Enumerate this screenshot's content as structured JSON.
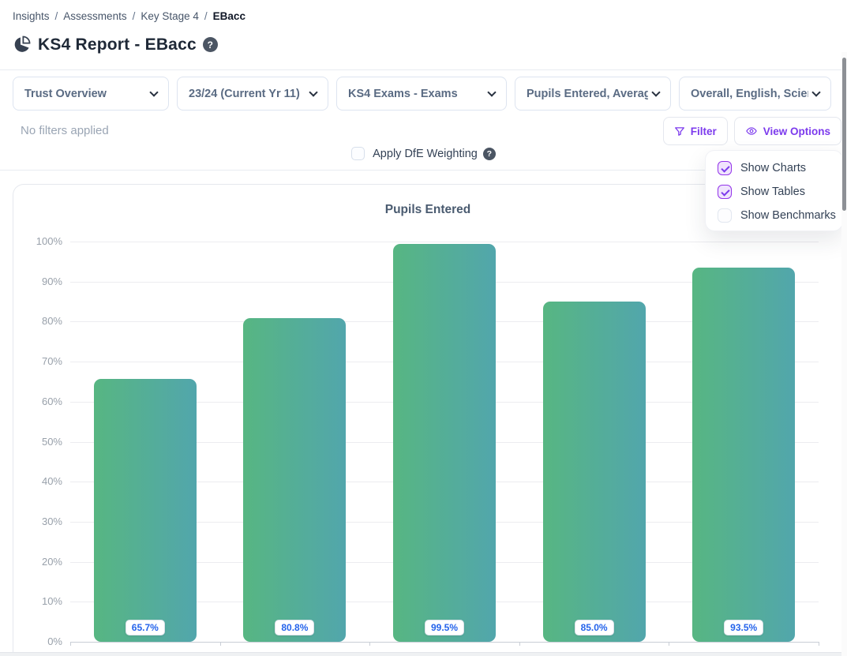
{
  "breadcrumb": {
    "separator": "/",
    "items": [
      "Insights",
      "Assessments",
      "Key Stage 4",
      "EBacc"
    ]
  },
  "help_glyph": "?",
  "header": {
    "title": "KS4 Report - EBacc"
  },
  "toolbar": {
    "dropdowns": [
      {
        "label": "Trust Overview"
      },
      {
        "label": "23/24 (Current Yr 11)"
      },
      {
        "label": "KS4 Exams - Exams"
      },
      {
        "label": "Pupils Entered, Average"
      },
      {
        "label": "Overall, English, Science"
      }
    ]
  },
  "filters_bar": {
    "no_filters_text": "No filters applied",
    "filter_button": "Filter",
    "view_options_button": "View Options"
  },
  "view_options_menu": {
    "items": [
      {
        "label": "Show Charts",
        "checked": true
      },
      {
        "label": "Show Tables",
        "checked": true
      },
      {
        "label": "Show Benchmarks",
        "checked": false
      }
    ]
  },
  "weighting": {
    "label": "Apply DfE Weighting",
    "checked": false
  },
  "chart_data": {
    "type": "bar",
    "title": "Pupils Entered",
    "values": [
      65.7,
      80.8,
      99.5,
      85.0,
      93.5
    ],
    "value_labels": [
      "65.7%",
      "80.8%",
      "99.5%",
      "85.0%",
      "93.5%"
    ],
    "y_ticks": [
      "0%",
      "10%",
      "20%",
      "30%",
      "40%",
      "50%",
      "60%",
      "70%",
      "80%",
      "90%",
      "100%"
    ],
    "ylim": [
      0,
      100
    ],
    "grid": true,
    "legend": false,
    "bar_gradient": [
      "#57b682",
      "#52a6ac"
    ],
    "value_label_color": "#2563eb"
  },
  "colors": {
    "accent": "#7c3aed",
    "help_badge": "#4b5563"
  }
}
